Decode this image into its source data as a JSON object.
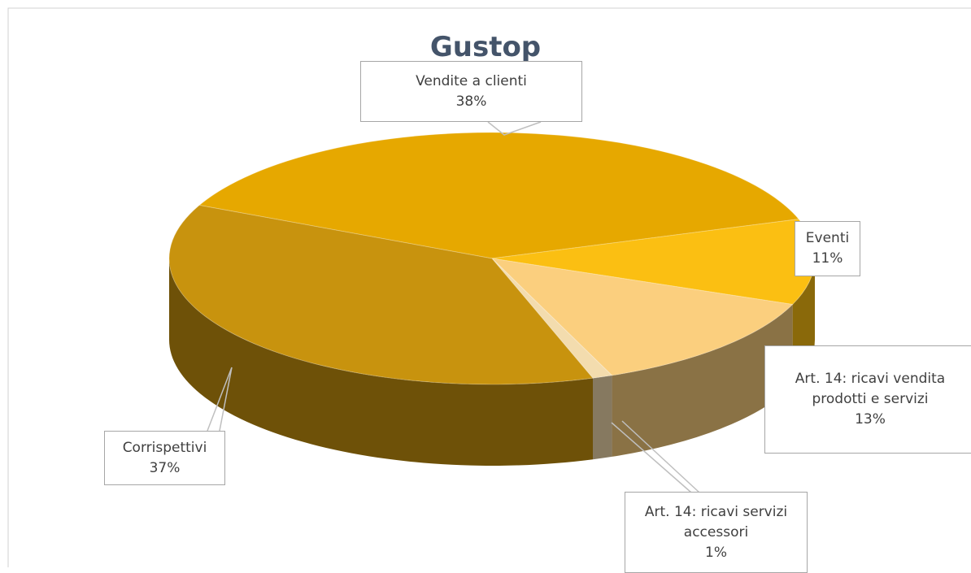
{
  "chart_data": {
    "type": "pie",
    "title": "Gustop",
    "categories": [
      "Vendite a clienti",
      "Eventi",
      "Art. 14: ricavi vendita prodotti e servizi",
      "Art. 14: ricavi servizi accessori",
      "Corrispettivi"
    ],
    "values": [
      38,
      11,
      13,
      1,
      37
    ],
    "value_labels": [
      "38%",
      "11%",
      "13%",
      "1%",
      "37%"
    ],
    "colors": [
      "#e6a800",
      "#fbbf12",
      "#fbcf7e",
      "#f3dcae",
      "#c8930e"
    ]
  }
}
